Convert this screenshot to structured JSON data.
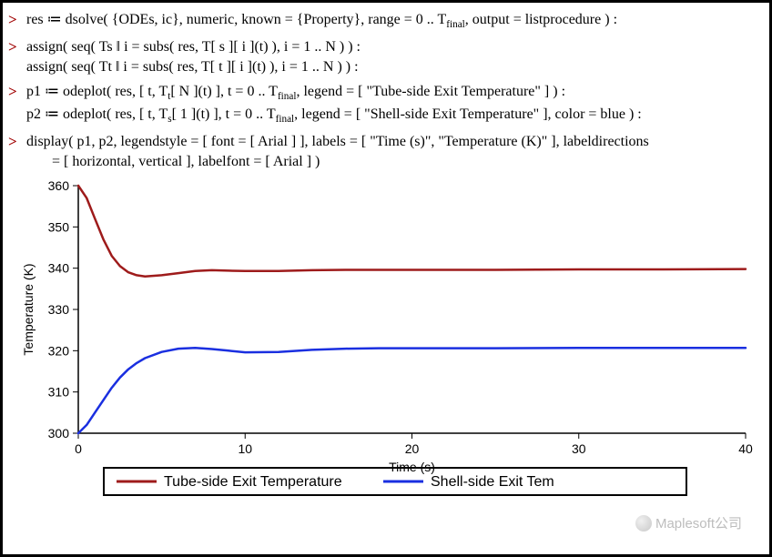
{
  "code": {
    "line1": "res ≔ dsolve( {ODEs, ic}, numeric, known = {Property}, range = 0 .. T",
    "line1_sub": "final",
    "line1_tail": ", output = listprocedure ) :",
    "line2a": "assign( seq( Ts ‖ i = subs( res, T[ s ][ i ](t) ), i = 1 .. N ) ) :",
    "line2b": "assign( seq( Tt ‖ i = subs( res, T[ t ][ i ](t) ), i = 1 .. N ) ) :",
    "line3a_head": "p1 ≔ odeplot( res, [ t, T",
    "line3a_sub1": "t",
    "line3a_mid": "[ N ](t) ], t = 0 .. T",
    "line3a_sub2": "final",
    "line3a_tail": ", legend = [ \"Tube-side Exit Temperature\" ] ) :",
    "line3b_head": "p2 ≔ odeplot( res, [ t, T",
    "line3b_sub1": "s",
    "line3b_mid": "[ 1 ](t) ], t = 0 .. T",
    "line3b_sub2": "final",
    "line3b_tail": ", legend = [ \"Shell-side Exit Temperature\" ], color = blue ) :",
    "line4a": "display( p1, p2, legendstyle = [ font = [ Arial ] ], labels = [ \"Time (s)\", \"Temperature (K)\" ], labeldirections",
    "line4b": "= [ horizontal, vertical ], labelfont = [ Arial ] )"
  },
  "chart": {
    "type": "line",
    "xlabel": "Time (s)",
    "ylabel": "Temperature (K)",
    "xlim": [
      0,
      40
    ],
    "ylim": [
      300,
      360
    ],
    "xticks": [
      0,
      10,
      20,
      30,
      40
    ],
    "yticks": [
      300,
      310,
      320,
      330,
      340,
      350,
      360
    ],
    "series": [
      {
        "name": "Tube-side Exit Temperature",
        "color": "#9e1b1b",
        "width": 2.5,
        "points": [
          [
            0,
            360
          ],
          [
            0.5,
            357
          ],
          [
            1,
            352
          ],
          [
            1.5,
            347
          ],
          [
            2,
            343
          ],
          [
            2.5,
            340.5
          ],
          [
            3,
            339
          ],
          [
            3.5,
            338.3
          ],
          [
            4,
            338
          ],
          [
            5,
            338.3
          ],
          [
            6,
            338.8
          ],
          [
            7,
            339.3
          ],
          [
            8,
            339.5
          ],
          [
            9,
            339.4
          ],
          [
            10,
            339.3
          ],
          [
            12,
            339.3
          ],
          [
            14,
            339.5
          ],
          [
            16,
            339.6
          ],
          [
            18,
            339.6
          ],
          [
            20,
            339.6
          ],
          [
            25,
            339.6
          ],
          [
            30,
            339.7
          ],
          [
            35,
            339.7
          ],
          [
            40,
            339.8
          ]
        ]
      },
      {
        "name": "Shell-side Exit Temperature",
        "color": "#1a2fe0",
        "width": 2.5,
        "points": [
          [
            0,
            300
          ],
          [
            0.5,
            302
          ],
          [
            1,
            305
          ],
          [
            1.5,
            308
          ],
          [
            2,
            311
          ],
          [
            2.5,
            313.5
          ],
          [
            3,
            315.5
          ],
          [
            3.5,
            317
          ],
          [
            4,
            318.2
          ],
          [
            5,
            319.7
          ],
          [
            6,
            320.5
          ],
          [
            7,
            320.7
          ],
          [
            8,
            320.4
          ],
          [
            9,
            320
          ],
          [
            10,
            319.6
          ],
          [
            12,
            319.7
          ],
          [
            14,
            320.2
          ],
          [
            16,
            320.5
          ],
          [
            18,
            320.6
          ],
          [
            20,
            320.6
          ],
          [
            25,
            320.6
          ],
          [
            30,
            320.7
          ],
          [
            35,
            320.7
          ],
          [
            40,
            320.7
          ]
        ]
      }
    ],
    "legend": {
      "items": [
        {
          "label": "Tube-side Exit Temperature",
          "color": "#9e1b1b"
        },
        {
          "label": "Shell-side Exit Tem",
          "color": "#1a2fe0"
        }
      ],
      "border_color": "#000000"
    },
    "background_color": "#ffffff",
    "axis_color": "#000000",
    "label_fontsize": 14,
    "tick_fontsize": 14
  },
  "watermark": "Maplesoft公司"
}
